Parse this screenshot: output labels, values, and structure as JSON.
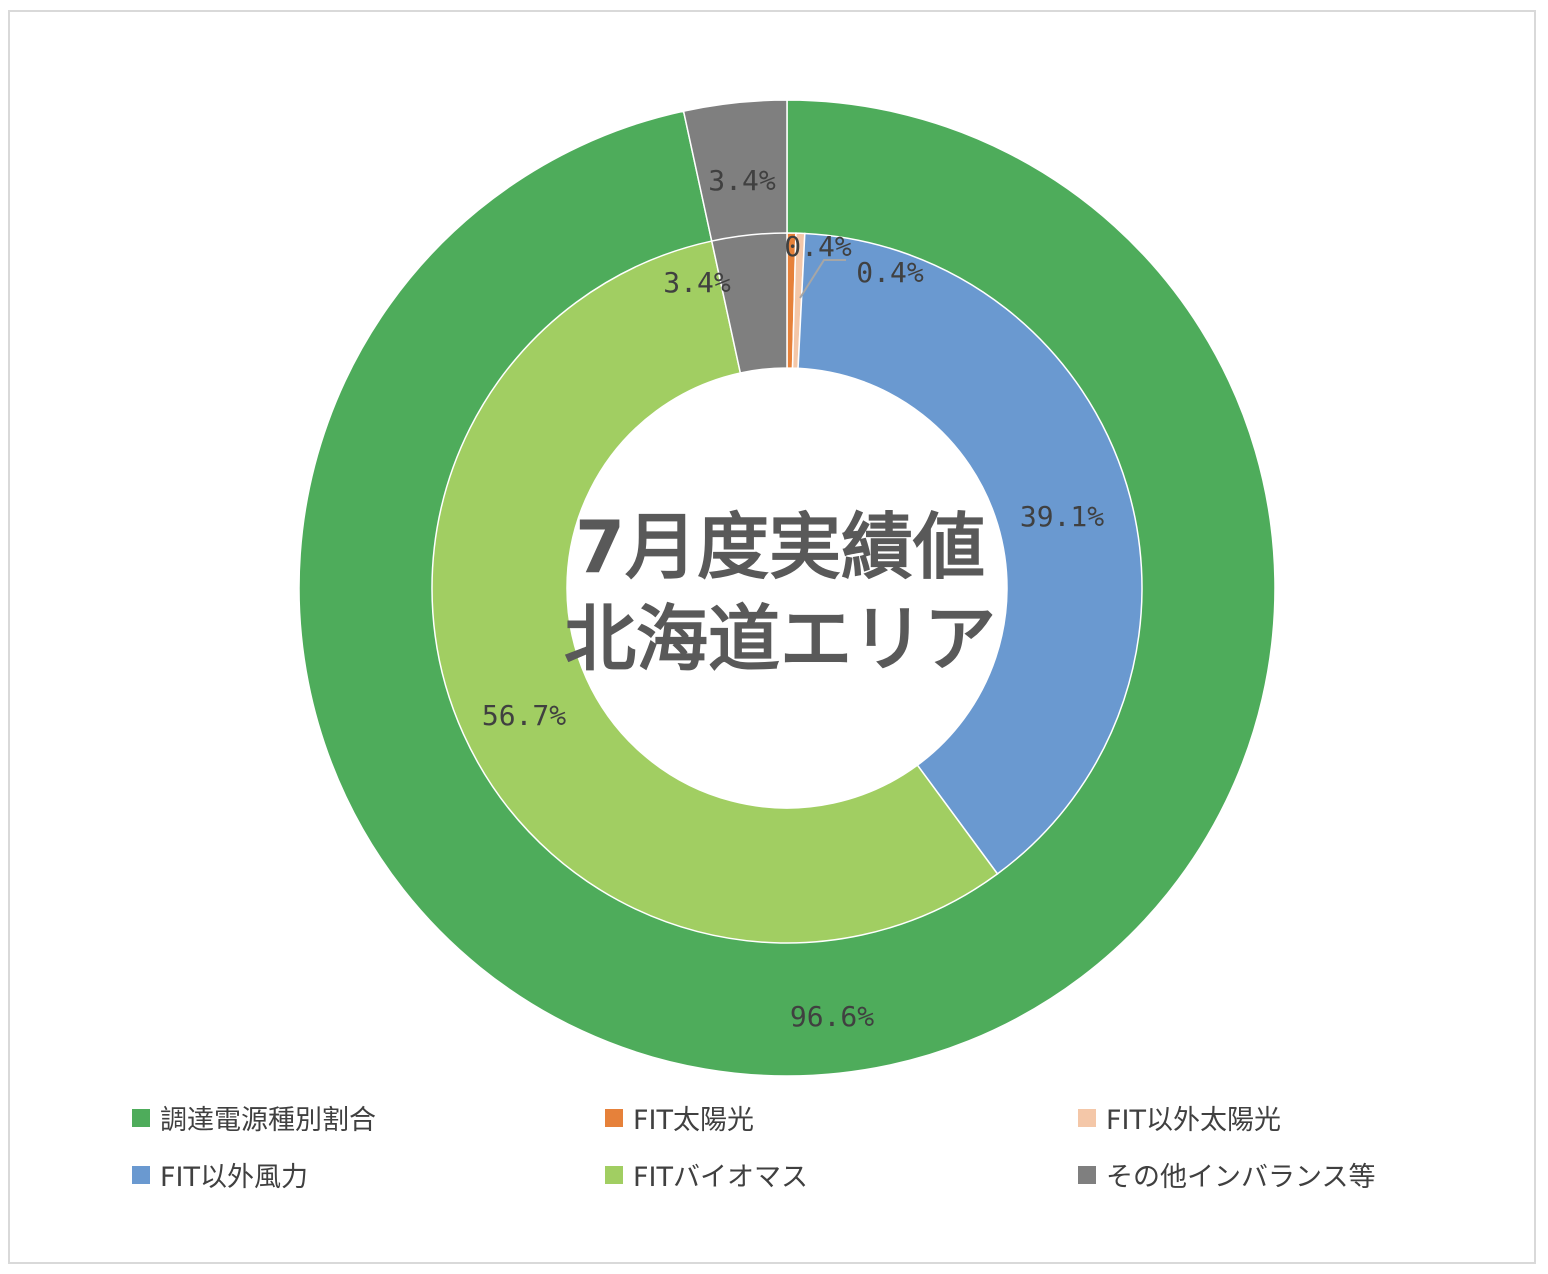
{
  "chart_data": {
    "type": "donut",
    "title_lines": [
      "7月度実績値",
      "北海道エリア"
    ],
    "legend": [
      {
        "label": "調達電源種別割合",
        "color": "#4EAC5B"
      },
      {
        "label": "FIT太陽光",
        "color": "#E6813A"
      },
      {
        "label": "FIT以外太陽光",
        "color": "#F4C7A8"
      },
      {
        "label": "FIT以外風力",
        "color": "#6A99D0"
      },
      {
        "label": "FITバイオマス",
        "color": "#A1CE62"
      },
      {
        "label": "その他インバランス等",
        "color": "#7F7F7F"
      }
    ],
    "rings": [
      {
        "ring": "outer",
        "slices": [
          {
            "name": "調達電源種別割合",
            "value": 96.6,
            "label": "96.6%",
            "color": "#4EAC5B"
          },
          {
            "name": "その他インバランス等",
            "value": 3.4,
            "label": "3.4%",
            "color": "#7F7F7F"
          }
        ]
      },
      {
        "ring": "inner",
        "slices": [
          {
            "name": "FIT太陽光",
            "value": 0.4,
            "label": "0.4%",
            "color": "#E6813A"
          },
          {
            "name": "FIT以外太陽光",
            "value": 0.4,
            "label": "0.4%",
            "color": "#F4C7A8"
          },
          {
            "name": "FIT以外風力",
            "value": 39.1,
            "label": "39.1%",
            "color": "#6A99D0"
          },
          {
            "name": "FITバイオマス",
            "value": 56.7,
            "label": "56.7%",
            "color": "#A1CE62"
          },
          {
            "name": "その他インバランス等",
            "value": 3.4,
            "label": "3.4%",
            "color": "#7F7F7F"
          }
        ]
      }
    ]
  }
}
